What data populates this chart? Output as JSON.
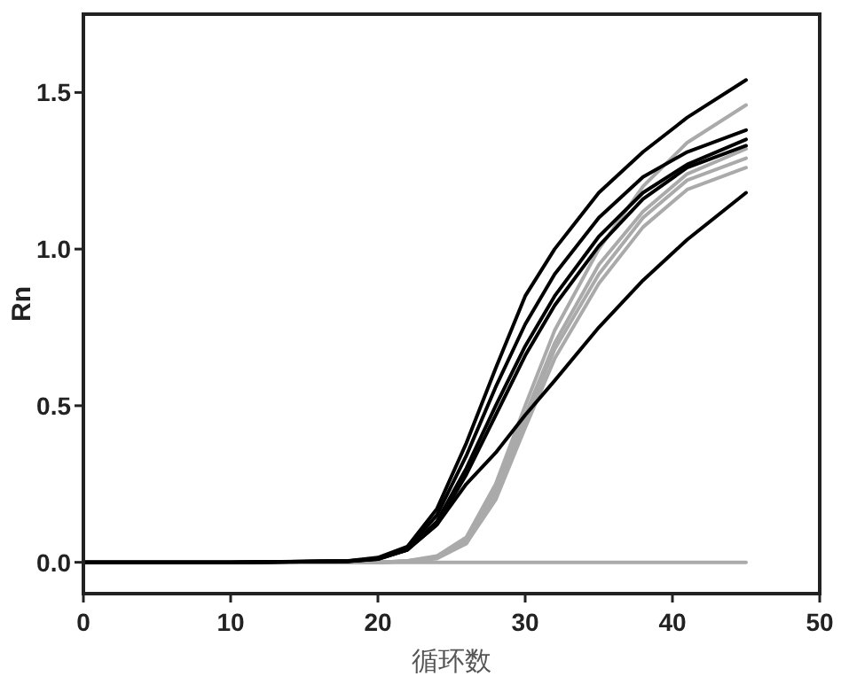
{
  "chart_data": {
    "type": "line",
    "xlabel": "循环数",
    "ylabel": "Rn",
    "xlim": [
      0,
      50
    ],
    "ylim": [
      -0.1,
      1.75
    ],
    "xticks": [
      0,
      10,
      20,
      30,
      40,
      50
    ],
    "yticks": [
      {
        "value": 0,
        "label": "0.0"
      },
      {
        "value": 0.5,
        "label": "0.5"
      },
      {
        "value": 1,
        "label": "1.0"
      },
      {
        "value": 1.5,
        "label": "1.5"
      }
    ],
    "x": [
      0,
      10,
      18,
      20,
      22,
      24,
      26,
      28,
      30,
      32,
      35,
      38,
      41,
      45
    ],
    "grid": false,
    "marker": "none",
    "line_style": "solid",
    "series": [
      {
        "color": "#aaaaaa",
        "values": [
          0,
          0,
          0,
          0,
          0,
          0,
          0,
          0,
          0,
          0,
          0,
          0,
          0,
          0
        ]
      },
      {
        "color": "#aaaaaa",
        "values": [
          0,
          0,
          0,
          0,
          0.005,
          0.02,
          0.08,
          0.25,
          0.5,
          0.74,
          1.0,
          1.2,
          1.34,
          1.46
        ]
      },
      {
        "color": "#aaaaaa",
        "values": [
          0,
          0,
          0,
          0,
          0.004,
          0.015,
          0.07,
          0.23,
          0.47,
          0.7,
          0.95,
          1.12,
          1.24,
          1.32
        ]
      },
      {
        "color": "#aaaaaa",
        "values": [
          0,
          0,
          0,
          0,
          0.004,
          0.015,
          0.06,
          0.22,
          0.45,
          0.68,
          0.92,
          1.1,
          1.22,
          1.29
        ]
      },
      {
        "color": "#aaaaaa",
        "values": [
          0,
          0,
          0,
          0,
          0.003,
          0.012,
          0.06,
          0.2,
          0.43,
          0.65,
          0.89,
          1.07,
          1.19,
          1.26
        ]
      },
      {
        "color": "#000000",
        "values": [
          0,
          0,
          0.005,
          0.015,
          0.05,
          0.17,
          0.38,
          0.62,
          0.85,
          1.0,
          1.18,
          1.31,
          1.42,
          1.54
        ]
      },
      {
        "color": "#000000",
        "values": [
          0,
          0,
          0.004,
          0.012,
          0.045,
          0.15,
          0.34,
          0.56,
          0.76,
          0.92,
          1.1,
          1.23,
          1.31,
          1.38
        ]
      },
      {
        "color": "#000000",
        "values": [
          0,
          0,
          0.004,
          0.012,
          0.04,
          0.13,
          0.3,
          0.5,
          0.69,
          0.85,
          1.04,
          1.18,
          1.27,
          1.35
        ]
      },
      {
        "color": "#000000",
        "values": [
          0,
          0,
          0.003,
          0.01,
          0.04,
          0.12,
          0.28,
          0.47,
          0.66,
          0.82,
          1.01,
          1.16,
          1.26,
          1.33
        ]
      },
      {
        "color": "#000000",
        "values": [
          0,
          0,
          0.003,
          0.01,
          0.04,
          0.12,
          0.25,
          0.35,
          0.47,
          0.58,
          0.75,
          0.9,
          1.03,
          1.18
        ]
      }
    ]
  }
}
